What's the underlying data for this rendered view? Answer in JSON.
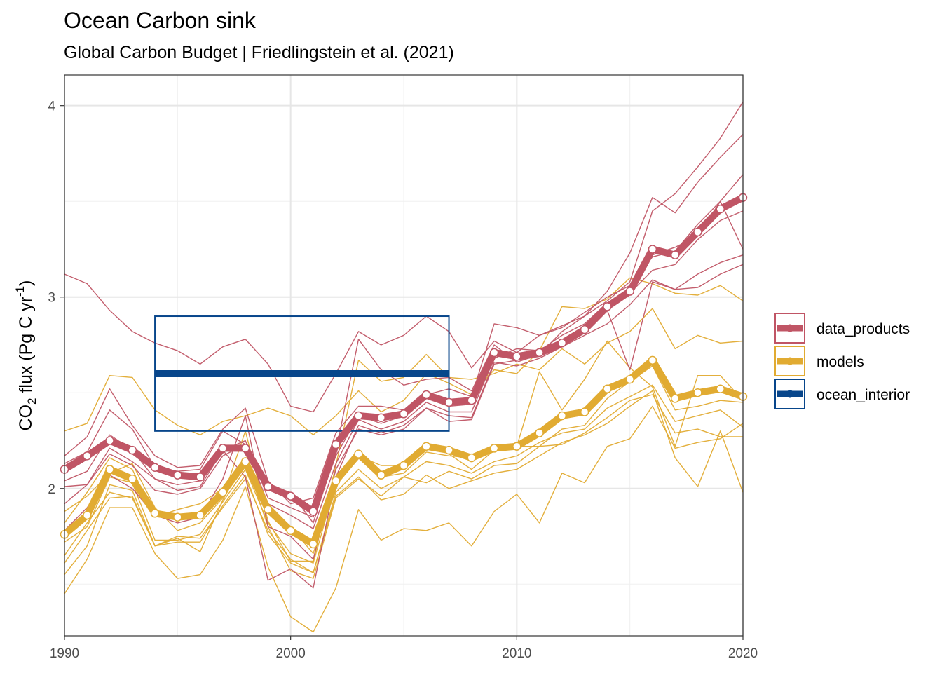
{
  "chart_data": {
    "type": "line",
    "title": "Ocean Carbon sink",
    "subtitle": "Global Carbon Budget | Friedlingstein et al. (2021)",
    "ylabel": {
      "base": "CO",
      "sub": "2",
      "mid": " flux (Pg C yr",
      "sup": "-1",
      "end": ")"
    },
    "xlabel": "",
    "xlim": [
      1990,
      2020
    ],
    "ylim": [
      1.23,
      4.16
    ],
    "x_ticks": [
      1990,
      2000,
      2010,
      2020
    ],
    "y_ticks": [
      2,
      3,
      4
    ],
    "x_minor": [
      1995,
      2005,
      2015
    ],
    "y_minor": [
      1.5,
      2.5,
      3.5
    ],
    "grid": true,
    "legend_position": "right",
    "legend": [
      {
        "label": "data_products",
        "color": "#c05565"
      },
      {
        "label": "models",
        "color": "#e1ab32"
      },
      {
        "label": "ocean_interior",
        "color": "#08468b"
      }
    ],
    "colors": {
      "data_products": "#c05565",
      "models": "#e1ab32",
      "ocean_interior": "#08468b"
    },
    "ensemble_series": [
      {
        "group": "data_products",
        "x_start": 1990,
        "values": [
          3.12,
          3.07,
          2.93,
          2.82,
          2.76,
          2.72,
          2.65,
          2.74,
          2.78,
          2.65,
          2.43,
          2.4,
          2.6,
          2.82,
          2.75,
          2.8,
          2.9,
          2.82,
          2.63,
          2.77,
          2.71,
          2.8,
          2.84,
          2.92,
          3.0,
          3.06,
          3.21,
          3.24,
          3.38,
          3.5,
          3.64
        ]
      },
      {
        "group": "data_products",
        "x_start": 1990,
        "values": [
          2.17,
          2.27,
          2.52,
          2.33,
          2.17,
          2.11,
          2.12,
          2.31,
          2.42,
          2.04,
          1.92,
          1.95,
          2.29,
          2.43,
          2.43,
          2.41,
          2.49,
          2.52,
          2.48,
          2.86,
          2.84,
          2.8,
          2.85,
          2.9,
          3.03,
          3.23,
          3.52,
          3.44,
          3.6,
          3.73,
          3.85
        ]
      },
      {
        "group": "data_products",
        "x_start": 1990,
        "values": [
          2.13,
          2.19,
          2.41,
          2.31,
          2.11,
          2.09,
          2.1,
          2.3,
          2.23,
          2.0,
          1.98,
          1.82,
          2.19,
          2.78,
          2.62,
          2.54,
          2.57,
          2.58,
          2.51,
          2.75,
          2.66,
          2.7,
          2.82,
          2.9,
          2.98,
          3.08,
          3.45,
          3.54,
          3.68,
          3.83,
          4.02
        ]
      },
      {
        "group": "data_products",
        "x_start": 1990,
        "values": [
          2.01,
          2.02,
          2.18,
          2.12,
          1.99,
          1.97,
          2.0,
          2.17,
          2.23,
          1.92,
          1.86,
          1.79,
          2.13,
          2.36,
          2.31,
          2.35,
          2.45,
          2.4,
          2.4,
          2.68,
          2.73,
          2.72,
          2.8,
          2.86,
          2.97,
          3.02,
          3.14,
          3.17,
          3.3,
          3.4,
          3.45
        ]
      },
      {
        "group": "data_products",
        "x_start": 1990,
        "values": [
          2.04,
          2.09,
          2.28,
          2.2,
          2.05,
          2.02,
          2.04,
          2.2,
          2.25,
          1.95,
          1.9,
          1.85,
          2.17,
          2.38,
          2.34,
          2.38,
          2.47,
          2.43,
          2.44,
          2.7,
          2.69,
          2.7,
          2.77,
          2.84,
          2.95,
          3.05,
          3.22,
          3.26,
          3.32,
          3.5,
          3.25
        ]
      },
      {
        "group": "data_products",
        "x_start": 1990,
        "values": [
          1.78,
          1.9,
          2.07,
          2.0,
          1.86,
          1.82,
          1.85,
          2.05,
          2.38,
          1.8,
          1.75,
          1.63,
          2.1,
          2.31,
          2.28,
          2.31,
          2.42,
          2.35,
          2.36,
          2.65,
          2.67,
          2.69,
          2.74,
          2.82,
          2.93,
          2.62,
          3.08,
          3.04,
          3.05,
          3.12,
          3.17
        ]
      },
      {
        "group": "data_products",
        "x_start": 1990,
        "values": [
          1.92,
          2.02,
          2.21,
          2.14,
          2.05,
          1.99,
          2.01,
          2.2,
          2.06,
          1.52,
          1.58,
          1.48,
          2.06,
          2.33,
          2.29,
          2.33,
          2.42,
          2.38,
          2.37,
          2.66,
          2.64,
          2.68,
          2.74,
          2.8,
          2.86,
          2.96,
          3.09,
          3.04,
          3.12,
          3.18,
          3.22
        ]
      },
      {
        "group": "models",
        "x_start": 1990,
        "values": [
          2.3,
          2.34,
          2.59,
          2.58,
          2.41,
          2.33,
          2.28,
          2.35,
          2.38,
          2.42,
          2.38,
          2.28,
          2.38,
          2.51,
          2.4,
          2.46,
          2.6,
          2.55,
          2.49,
          2.62,
          2.6,
          2.72,
          2.95,
          2.94,
          2.99,
          3.1,
          3.07,
          3.02,
          3.01,
          3.06,
          2.98
        ]
      },
      {
        "group": "models",
        "x_start": 1990,
        "values": [
          1.88,
          1.96,
          2.08,
          2.13,
          1.9,
          1.78,
          1.82,
          1.95,
          2.3,
          1.83,
          1.62,
          1.62,
          2.12,
          2.67,
          2.56,
          2.58,
          2.7,
          2.58,
          2.57,
          2.6,
          2.65,
          2.62,
          2.73,
          2.65,
          2.76,
          2.82,
          2.94,
          2.73,
          2.8,
          2.76,
          2.77
        ]
      },
      {
        "group": "models",
        "x_start": 1990,
        "values": [
          1.82,
          1.98,
          2.16,
          2.1,
          1.85,
          1.89,
          1.92,
          2.0,
          2.16,
          1.92,
          1.8,
          1.66,
          2.04,
          2.17,
          2.12,
          2.12,
          2.23,
          2.18,
          2.1,
          2.2,
          2.22,
          2.61,
          2.41,
          2.57,
          2.77,
          2.63,
          2.53,
          2.22,
          2.59,
          2.59,
          2.46
        ]
      },
      {
        "group": "models",
        "x_start": 1990,
        "values": [
          1.72,
          1.8,
          2.06,
          2.03,
          1.73,
          1.73,
          1.76,
          1.93,
          2.1,
          1.82,
          1.66,
          1.61,
          2.03,
          2.16,
          2.06,
          2.08,
          2.19,
          2.17,
          2.16,
          2.2,
          2.22,
          2.22,
          2.31,
          2.33,
          2.47,
          2.56,
          2.64,
          2.41,
          2.43,
          2.46,
          2.45
        ]
      },
      {
        "group": "models",
        "x_start": 1990,
        "values": [
          1.65,
          1.82,
          1.98,
          1.95,
          1.7,
          1.75,
          1.74,
          1.9,
          2.05,
          1.78,
          1.63,
          1.56,
          1.98,
          2.1,
          2.0,
          2.06,
          2.14,
          2.12,
          2.08,
          2.14,
          2.17,
          2.24,
          2.29,
          2.31,
          2.42,
          2.48,
          2.54,
          2.35,
          2.38,
          2.41,
          2.32
        ]
      },
      {
        "group": "models",
        "x_start": 1990,
        "values": [
          1.55,
          1.7,
          2.02,
          1.99,
          1.7,
          1.74,
          1.67,
          1.94,
          2.15,
          1.8,
          1.57,
          1.53,
          1.95,
          2.05,
          1.96,
          2.06,
          2.03,
          2.09,
          2.05,
          2.12,
          2.13,
          2.22,
          2.23,
          2.29,
          2.37,
          2.46,
          2.49,
          2.29,
          2.31,
          2.27,
          2.27
        ]
      },
      {
        "group": "models",
        "x_start": 1990,
        "values": [
          1.61,
          1.78,
          1.95,
          1.96,
          1.7,
          1.72,
          1.72,
          1.91,
          2.07,
          1.76,
          1.61,
          1.56,
          1.96,
          2.06,
          1.94,
          1.97,
          2.07,
          2.0,
          2.04,
          2.08,
          2.1,
          2.17,
          2.24,
          2.28,
          2.34,
          2.43,
          2.51,
          2.16,
          2.01,
          2.3,
          1.98
        ]
      },
      {
        "group": "models",
        "x_start": 1990,
        "values": [
          1.45,
          1.63,
          1.9,
          1.9,
          1.66,
          1.53,
          1.55,
          1.73,
          2.01,
          1.59,
          1.33,
          1.25,
          1.48,
          1.89,
          1.73,
          1.79,
          1.78,
          1.82,
          1.7,
          1.88,
          1.97,
          1.82,
          2.08,
          2.03,
          2.22,
          2.26,
          2.43,
          2.21,
          2.24,
          2.26,
          2.34
        ]
      }
    ],
    "series": [
      {
        "name": "data_products",
        "x_start": 1990,
        "values": [
          2.1,
          2.17,
          2.25,
          2.2,
          2.11,
          2.07,
          2.06,
          2.21,
          2.21,
          2.01,
          1.96,
          1.88,
          2.23,
          2.38,
          2.37,
          2.39,
          2.49,
          2.45,
          2.46,
          2.71,
          2.69,
          2.71,
          2.76,
          2.83,
          2.95,
          3.03,
          3.25,
          3.22,
          3.34,
          3.46,
          3.52
        ]
      },
      {
        "name": "models",
        "x_start": 1990,
        "values": [
          1.76,
          1.86,
          2.1,
          2.05,
          1.87,
          1.85,
          1.86,
          1.98,
          2.14,
          1.89,
          1.78,
          1.71,
          2.04,
          2.18,
          2.07,
          2.12,
          2.22,
          2.2,
          2.16,
          2.21,
          2.22,
          2.29,
          2.38,
          2.4,
          2.52,
          2.57,
          2.67,
          2.47,
          2.5,
          2.52,
          2.48
        ]
      },
      {
        "name": "ocean_interior",
        "type": "range",
        "x_range": [
          1994,
          2007
        ],
        "value": 2.6,
        "lower": 2.3,
        "upper": 2.9
      }
    ]
  }
}
